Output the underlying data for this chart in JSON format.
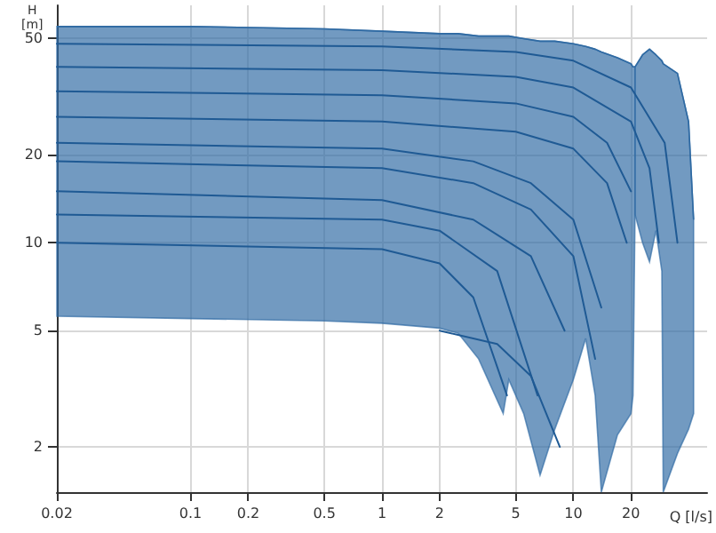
{
  "chart_data": {
    "type": "line",
    "xlabel": "Q [l/s]",
    "ylabel": "H [m]",
    "log": "xy",
    "grid": true,
    "marker": "none",
    "line_style": "solid",
    "xlim": [
      0.02,
      50
    ],
    "xticks": [
      0.02,
      0.1,
      0.2,
      0.5,
      1,
      2,
      5,
      10,
      20
    ],
    "ylim": [
      1.4,
      65
    ],
    "yticks": [
      2,
      5,
      10,
      20,
      50
    ],
    "series": [
      {
        "color": "#2f6aa3",
        "x": [
          0.02,
          0.1,
          0.5,
          1,
          2,
          2.5,
          3.2,
          4.3,
          4.6,
          5.5,
          6.7,
          8,
          10,
          11.6,
          13,
          14,
          17,
          20,
          20.5,
          21
        ],
        "values": [
          55,
          55,
          54,
          53,
          52,
          52,
          51,
          51,
          51,
          50,
          49,
          49,
          48,
          47,
          46,
          45,
          43,
          41,
          40,
          40
        ],
        "lower": [
          5.6,
          5.5,
          5.4,
          5.3,
          5.1,
          4.9,
          4.0,
          2.6,
          3.4,
          2.6,
          1.6,
          2.3,
          3.4,
          4.7,
          3.0,
          1.4,
          2.2,
          2.6,
          3.0,
          12.5
        ],
        "upper": [
          55,
          55,
          54,
          53,
          52,
          52,
          51,
          51,
          51,
          50,
          49,
          49,
          48,
          47,
          46,
          45,
          43,
          41,
          40,
          40
        ]
      },
      {
        "color": "#2f6aa3",
        "x": [
          21,
          23,
          25,
          27,
          29,
          29.5,
          35,
          40,
          42.5
        ],
        "values": [
          40,
          44,
          46,
          44,
          42,
          41,
          38,
          26,
          12
        ],
        "lower": [
          12.5,
          10,
          8.6,
          11,
          8,
          1.4,
          1.9,
          2.3,
          2.6
        ],
        "upper": [
          40,
          44,
          46,
          44,
          42,
          41,
          38,
          26,
          12
        ]
      },
      {
        "color": "#1f5a94",
        "x": [
          0.02,
          1,
          5,
          10,
          20,
          30,
          35
        ],
        "values": [
          48,
          47,
          45,
          42,
          34,
          22,
          10
        ]
      },
      {
        "color": "#1f5a94",
        "x": [
          0.02,
          1,
          5,
          10,
          20,
          25,
          28
        ],
        "values": [
          40,
          39,
          37,
          34,
          26,
          18,
          10
        ]
      },
      {
        "color": "#1f5a94",
        "x": [
          0.02,
          1,
          5,
          10,
          15,
          20
        ],
        "values": [
          33,
          32,
          30,
          27,
          22,
          15
        ]
      },
      {
        "color": "#1f5a94",
        "x": [
          0.02,
          1,
          5,
          10,
          15,
          19
        ],
        "values": [
          27,
          26,
          24,
          21,
          16,
          10
        ]
      },
      {
        "color": "#1f5a94",
        "x": [
          0.02,
          1,
          3,
          6,
          10,
          14
        ],
        "values": [
          22,
          21,
          19,
          16,
          12,
          6
        ]
      },
      {
        "color": "#1f5a94",
        "x": [
          0.02,
          1,
          3,
          6,
          10,
          13
        ],
        "values": [
          19,
          18,
          16,
          13,
          9,
          4
        ]
      },
      {
        "color": "#1f5a94",
        "x": [
          0.02,
          1,
          3,
          6,
          9
        ],
        "values": [
          15,
          14,
          12,
          9,
          5
        ]
      },
      {
        "color": "#1f5a94",
        "x": [
          0.02,
          1,
          2,
          4,
          6.5
        ],
        "values": [
          12.5,
          12,
          11,
          8,
          3
        ]
      },
      {
        "color": "#1f5a94",
        "x": [
          0.02,
          1,
          2,
          3,
          4.5
        ],
        "values": [
          10,
          9.5,
          8.5,
          6.5,
          3
        ]
      },
      {
        "color": "#1f5a94",
        "x": [
          2,
          4,
          6,
          8.5
        ],
        "values": [
          5,
          4.5,
          3.5,
          2
        ]
      }
    ]
  }
}
